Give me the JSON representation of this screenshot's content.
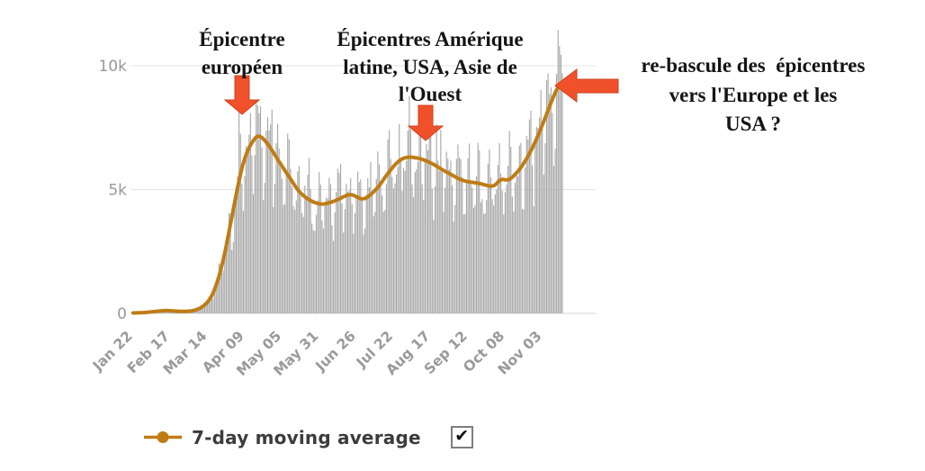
{
  "colors": {
    "bar": "#a5a5a5",
    "line": "#bf7c15",
    "grid": "#e4e4e8",
    "zero_line": "#d4d4d9",
    "axis_label": "#98989d",
    "arrow_fill": "#f1512a",
    "arrow_border": "#c8431f",
    "annotation_text": "#151515",
    "legend_text": "#3c3c3c"
  },
  "chart_data": {
    "type": "bar",
    "title": "",
    "xlabel": "",
    "ylabel": "",
    "grid": "horizontal",
    "legend_position": "bottom-left",
    "x_ticks": [
      "Jan 22",
      "Feb 17",
      "Mar 14",
      "Apr 09",
      "May 05",
      "May 31",
      "Jun 26",
      "Jul 22",
      "Aug 17",
      "Sep 12",
      "Oct 08",
      "Nov 03"
    ],
    "x_tick_days": [
      0,
      26,
      52,
      78,
      104,
      130,
      156,
      182,
      208,
      234,
      260,
      286
    ],
    "total_days": 301,
    "ylim": [
      0,
      11500
    ],
    "y_ticks": [
      {
        "v": 0,
        "label": "0"
      },
      {
        "v": 5000,
        "label": "5k"
      },
      {
        "v": 10000,
        "label": "10k"
      }
    ],
    "moving_average_points": [
      [
        0,
        15
      ],
      [
        6,
        30
      ],
      [
        10,
        45
      ],
      [
        14,
        70
      ],
      [
        18,
        95
      ],
      [
        22,
        115
      ],
      [
        26,
        110
      ],
      [
        30,
        90
      ],
      [
        34,
        78
      ],
      [
        38,
        82
      ],
      [
        42,
        110
      ],
      [
        46,
        180
      ],
      [
        50,
        330
      ],
      [
        53,
        520
      ],
      [
        56,
        800
      ],
      [
        59,
        1300
      ],
      [
        62,
        1900
      ],
      [
        65,
        2700
      ],
      [
        68,
        3600
      ],
      [
        71,
        4500
      ],
      [
        74,
        5400
      ],
      [
        77,
        6100
      ],
      [
        80,
        6600
      ],
      [
        83,
        6900
      ],
      [
        86,
        7150
      ],
      [
        88,
        7200
      ],
      [
        91,
        7050
      ],
      [
        94,
        6850
      ],
      [
        97,
        6600
      ],
      [
        100,
        6300
      ],
      [
        104,
        5950
      ],
      [
        108,
        5600
      ],
      [
        111,
        5350
      ],
      [
        114,
        5050
      ],
      [
        118,
        4800
      ],
      [
        122,
        4620
      ],
      [
        125,
        4520
      ],
      [
        128,
        4450
      ],
      [
        132,
        4400
      ],
      [
        136,
        4450
      ],
      [
        140,
        4520
      ],
      [
        144,
        4620
      ],
      [
        148,
        4740
      ],
      [
        151,
        4810
      ],
      [
        155,
        4760
      ],
      [
        158,
        4640
      ],
      [
        161,
        4600
      ],
      [
        164,
        4700
      ],
      [
        168,
        4900
      ],
      [
        172,
        5150
      ],
      [
        176,
        5500
      ],
      [
        180,
        5800
      ],
      [
        184,
        6080
      ],
      [
        188,
        6250
      ],
      [
        192,
        6320
      ],
      [
        196,
        6300
      ],
      [
        200,
        6260
      ],
      [
        204,
        6180
      ],
      [
        208,
        6080
      ],
      [
        212,
        5950
      ],
      [
        216,
        5800
      ],
      [
        220,
        5680
      ],
      [
        224,
        5550
      ],
      [
        228,
        5420
      ],
      [
        232,
        5340
      ],
      [
        236,
        5300
      ],
      [
        240,
        5270
      ],
      [
        244,
        5220
      ],
      [
        248,
        5150
      ],
      [
        252,
        5120
      ],
      [
        255,
        5300
      ],
      [
        257,
        5450
      ],
      [
        260,
        5380
      ],
      [
        263,
        5390
      ],
      [
        266,
        5550
      ],
      [
        270,
        5800
      ],
      [
        274,
        6150
      ],
      [
        278,
        6550
      ],
      [
        282,
        7050
      ],
      [
        286,
        7600
      ],
      [
        290,
        8200
      ],
      [
        294,
        8800
      ],
      [
        297,
        9150
      ],
      [
        300,
        9420
      ]
    ],
    "bar_weekly_pattern": [
      0.74,
      0.86,
      1.03,
      1.14,
      1.2,
      1.12,
      0.9
    ]
  },
  "annotations": [
    {
      "text": "Épicentre\neuropéen"
    },
    {
      "text": "Épicentres Amérique\nlatine, USA, Asie de\nl'Ouest"
    },
    {
      "text": "re-bascule des  épicentres\nvers l'Europe et les\nUSA ?"
    }
  ],
  "legend": {
    "label": "7-day moving average",
    "checked": true,
    "check_glyph": "✔"
  }
}
